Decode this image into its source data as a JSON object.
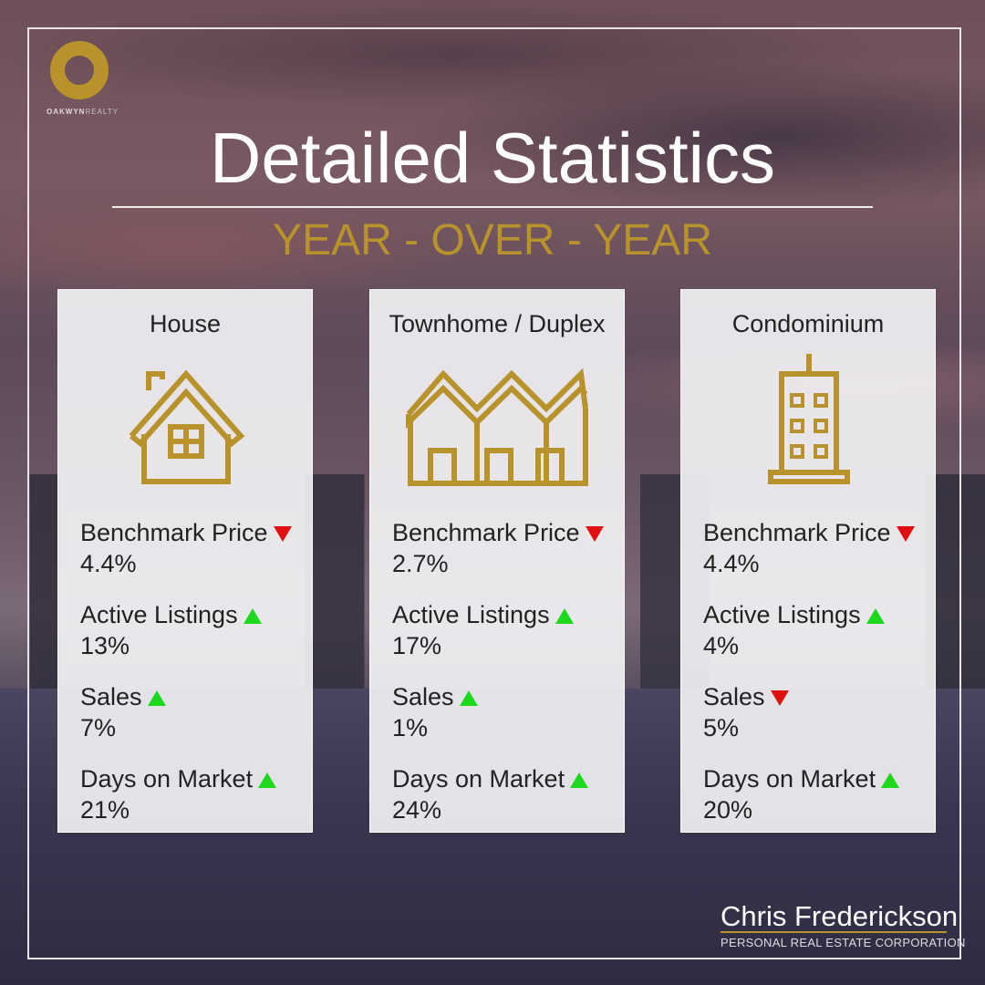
{
  "brand": {
    "logo_text_bold": "OAKWYN",
    "logo_text": "REALTY",
    "logo_color": "#b8922a"
  },
  "title": "Detailed Statistics",
  "subtitle": "YEAR - OVER - YEAR",
  "colors": {
    "accent": "#b8922a",
    "up": "#1ed81e",
    "down": "#e01010"
  },
  "cards": [
    {
      "title": "House",
      "icon": "house-icon",
      "stats": [
        {
          "label": "Benchmark Price",
          "value": "4.4%",
          "direction": "down"
        },
        {
          "label": "Active Listings",
          "value": "13%",
          "direction": "up"
        },
        {
          "label": "Sales",
          "value": "7%",
          "direction": "up"
        },
        {
          "label": "Days on Market",
          "value": "21%",
          "direction": "up"
        }
      ]
    },
    {
      "title": "Townhome / Duplex",
      "icon": "townhome-icon",
      "stats": [
        {
          "label": "Benchmark Price",
          "value": "2.7%",
          "direction": "down"
        },
        {
          "label": "Active Listings",
          "value": "17%",
          "direction": "up"
        },
        {
          "label": "Sales",
          "value": "1%",
          "direction": "up"
        },
        {
          "label": "Days on Market",
          "value": "24%",
          "direction": "up"
        }
      ]
    },
    {
      "title": "Condominium",
      "icon": "condo-building-icon",
      "stats": [
        {
          "label": "Benchmark Price",
          "value": "4.4%",
          "direction": "down"
        },
        {
          "label": "Active Listings",
          "value": "4%",
          "direction": "up"
        },
        {
          "label": "Sales",
          "value": "5%",
          "direction": "down"
        },
        {
          "label": "Days on Market",
          "value": "20%",
          "direction": "up"
        }
      ]
    }
  ],
  "agent": {
    "first": "Chris",
    "last": "Frederickson",
    "corp": "PERSONAL REAL ESTATE CORPORATION"
  }
}
